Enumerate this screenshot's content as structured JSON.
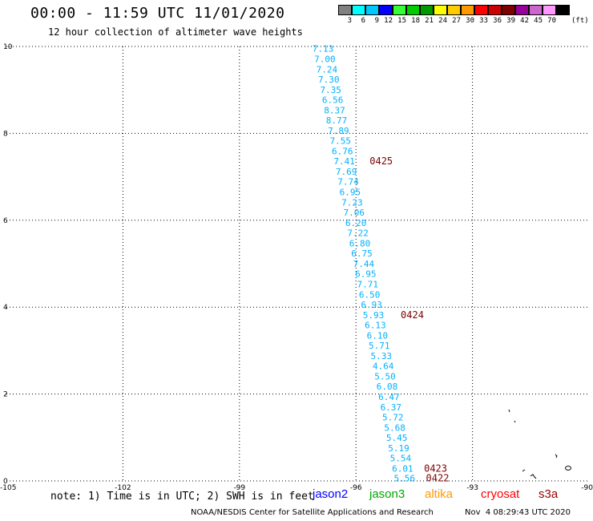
{
  "header": {
    "title": "00:00 - 11:59 UTC 11/01/2020",
    "subtitle": "12 hour collection of altimeter wave heights"
  },
  "colorbar": {
    "labels": [
      "3",
      "6",
      "9",
      "12",
      "15",
      "18",
      "21",
      "24",
      "27",
      "30",
      "33",
      "36",
      "39",
      "42",
      "45",
      "70"
    ],
    "unit": "(ft)",
    "colors": [
      "#808080",
      "#00ffff",
      "#00c8ff",
      "#0000ff",
      "#33ff33",
      "#00cc00",
      "#009900",
      "#ffff00",
      "#ffcc00",
      "#ff9900",
      "#ff0000",
      "#cc0000",
      "#800000",
      "#990099",
      "#cc66cc",
      "#ff99ff",
      "#000000"
    ]
  },
  "footer": {
    "note": "note: 1) Time is in UTC; 2) SWH is in feet",
    "satellites": [
      {
        "name": "jason2",
        "color": "#0000ff"
      },
      {
        "name": "jason3",
        "color": "#00aa00"
      },
      {
        "name": "altika",
        "color": "#ff9900"
      },
      {
        "name": "cryosat",
        "color": "#ff0000"
      },
      {
        "name": "s3a",
        "color": "#990000"
      }
    ],
    "credit": "NOAA/NESDIS Center for Satellite Applications and Research",
    "generated": "Nov  4 08:29:43 UTC 2020"
  },
  "chart_data": {
    "type": "scatter",
    "title": "00:00 - 11:59 UTC 11/01/2020",
    "xlim": [
      -105,
      -90
    ],
    "ylim": [
      0,
      10
    ],
    "xticks": [
      "-105",
      "-102",
      "-99",
      "-96",
      "-93",
      "-90"
    ],
    "yticks": [
      "0",
      "2",
      "4",
      "6",
      "8",
      "10"
    ],
    "grid": true,
    "value_color": "#00b0ff",
    "time_color": "#800000",
    "points": [
      {
        "x": -96.85,
        "y": 9.95,
        "v": "7.13"
      },
      {
        "x": -96.8,
        "y": 9.71,
        "v": "7.00"
      },
      {
        "x": -96.75,
        "y": 9.47,
        "v": "7.24"
      },
      {
        "x": -96.7,
        "y": 9.24,
        "v": "7.30"
      },
      {
        "x": -96.65,
        "y": 9.0,
        "v": "7.35"
      },
      {
        "x": -96.6,
        "y": 8.77,
        "v": "6.56"
      },
      {
        "x": -96.55,
        "y": 8.53,
        "v": "8.37"
      },
      {
        "x": -96.5,
        "y": 8.3,
        "v": "8.77"
      },
      {
        "x": -96.45,
        "y": 8.06,
        "v": "7.89"
      },
      {
        "x": -96.4,
        "y": 7.83,
        "v": "7.55"
      },
      {
        "x": -96.35,
        "y": 7.59,
        "v": "6.76"
      },
      {
        "x": -96.3,
        "y": 7.36,
        "v": "7.41"
      },
      {
        "x": -96.25,
        "y": 7.12,
        "v": "7.69"
      },
      {
        "x": -96.2,
        "y": 6.89,
        "v": "7.74"
      },
      {
        "x": -96.15,
        "y": 6.65,
        "v": "6.95"
      },
      {
        "x": -96.1,
        "y": 6.41,
        "v": "7.23"
      },
      {
        "x": -96.05,
        "y": 6.18,
        "v": "7.06"
      },
      {
        "x": -96.0,
        "y": 5.94,
        "v": "6.20"
      },
      {
        "x": -95.95,
        "y": 5.71,
        "v": "7.22"
      },
      {
        "x": -95.9,
        "y": 5.47,
        "v": "6.80"
      },
      {
        "x": -95.85,
        "y": 5.24,
        "v": "6.75"
      },
      {
        "x": -95.8,
        "y": 5.0,
        "v": "7.44"
      },
      {
        "x": -95.75,
        "y": 4.77,
        "v": "6.95"
      },
      {
        "x": -95.7,
        "y": 4.53,
        "v": "7.71"
      },
      {
        "x": -95.65,
        "y": 4.29,
        "v": "6.50"
      },
      {
        "x": -95.6,
        "y": 4.06,
        "v": "6.93"
      },
      {
        "x": -95.55,
        "y": 3.82,
        "v": "5.93"
      },
      {
        "x": -95.5,
        "y": 3.59,
        "v": "6.13"
      },
      {
        "x": -95.45,
        "y": 3.35,
        "v": "6.10"
      },
      {
        "x": -95.4,
        "y": 3.12,
        "v": "5.71"
      },
      {
        "x": -95.35,
        "y": 2.88,
        "v": "5.33"
      },
      {
        "x": -95.3,
        "y": 2.65,
        "v": "4.64"
      },
      {
        "x": -95.25,
        "y": 2.41,
        "v": "5.50"
      },
      {
        "x": -95.2,
        "y": 2.18,
        "v": "6.08"
      },
      {
        "x": -95.15,
        "y": 1.94,
        "v": "6.47"
      },
      {
        "x": -95.1,
        "y": 1.7,
        "v": "6.37"
      },
      {
        "x": -95.05,
        "y": 1.47,
        "v": "5.72"
      },
      {
        "x": -95.0,
        "y": 1.23,
        "v": "5.68"
      },
      {
        "x": -94.95,
        "y": 1.0,
        "v": "5.45"
      },
      {
        "x": -94.9,
        "y": 0.76,
        "v": "5.19"
      },
      {
        "x": -94.85,
        "y": 0.53,
        "v": "5.54"
      },
      {
        "x": -94.8,
        "y": 0.29,
        "v": "6.01"
      },
      {
        "x": -94.75,
        "y": 0.06,
        "v": "5.56"
      }
    ],
    "time_labels": [
      {
        "x": -95.35,
        "y": 7.36,
        "t": "0425"
      },
      {
        "x": -94.55,
        "y": 3.82,
        "t": "0424"
      },
      {
        "x": -93.95,
        "y": 0.29,
        "t": "0423"
      },
      {
        "x": -93.9,
        "y": 0.06,
        "t": "0422"
      }
    ]
  }
}
